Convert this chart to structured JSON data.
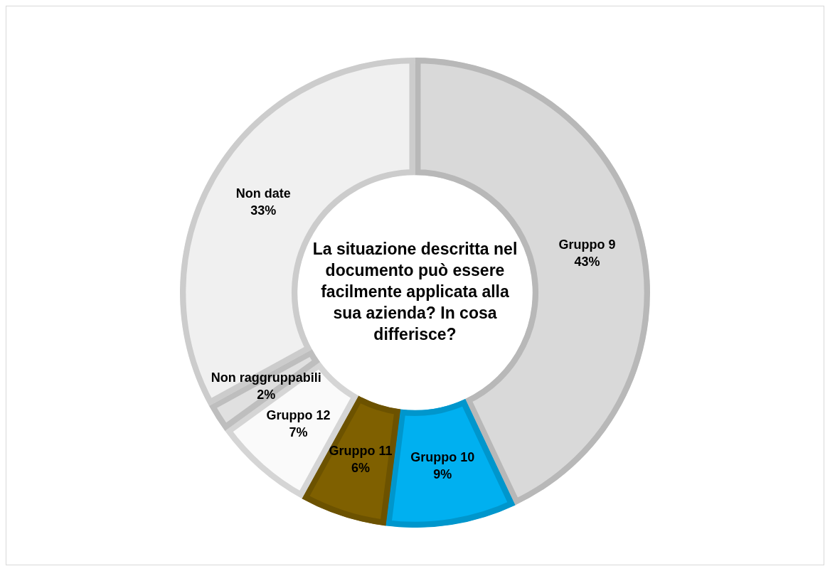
{
  "chart_data": {
    "type": "donut",
    "title": "La situazione descritta nel documento può essere facilmente applicata alla sua azienda? In cosa differisce?",
    "categories": [
      "Gruppo 9",
      "Gruppo 10",
      "Gruppo 11",
      "Gruppo 12",
      "Non raggruppabili",
      "Non date"
    ],
    "values": [
      43,
      9,
      6,
      7,
      2,
      33
    ],
    "value_labels": [
      "43%",
      "9%",
      "6%",
      "7%",
      "2%",
      "33%"
    ],
    "colors": [
      "#d9d9d9",
      "#00b0f0",
      "#7f6000",
      "#fafafa",
      "#e0e0e0",
      "#f0f0f0"
    ],
    "legend": false
  }
}
